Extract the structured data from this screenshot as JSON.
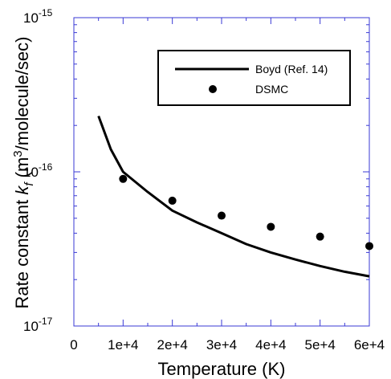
{
  "chart_data": {
    "type": "scatter",
    "xlabel": "Temperature (K)",
    "ylabel": {
      "prefix": "Rate constant ",
      "k": "k",
      "sub": "f",
      "unit_open": " (m",
      "sup": "3",
      "unit_close": "/molecule/sec)"
    },
    "x_ticks": [
      "0",
      "1e+4",
      "2e+4",
      "3e+4",
      "4e+4",
      "5e+4",
      "6e+4"
    ],
    "y_ticks": [
      {
        "base": "10",
        "exp": "-15",
        "value": 1e-15
      },
      {
        "base": "10",
        "exp": "-16",
        "value": 1e-16
      },
      {
        "base": "10",
        "exp": "-17",
        "value": 1e-17
      }
    ],
    "xlim": [
      0,
      60000
    ],
    "ylim": [
      1e-17,
      1e-15
    ],
    "y_scale": "log",
    "grid": false,
    "legend_position": "top-right",
    "series": [
      {
        "name": "Boyd (Ref. 14)",
        "kind": "line",
        "color": "#000000",
        "x": [
          5000,
          7500,
          10000,
          15000,
          20000,
          25000,
          30000,
          35000,
          40000,
          45000,
          50000,
          55000,
          60000
        ],
        "y": [
          2.3e-16,
          1.4e-16,
          1e-16,
          7.4e-17,
          5.6e-17,
          4.7e-17,
          4e-17,
          3.4e-17,
          3e-17,
          2.7e-17,
          2.45e-17,
          2.25e-17,
          2.1e-17
        ]
      },
      {
        "name": "DSMC",
        "kind": "scatter",
        "color": "#000000",
        "x": [
          10000,
          20000,
          30000,
          40000,
          50000,
          60000
        ],
        "y": [
          9e-17,
          6.5e-17,
          5.2e-17,
          4.4e-17,
          3.8e-17,
          3.3e-17
        ]
      }
    ]
  },
  "colors": {
    "frame": "#3a3ad6",
    "data": "#000000"
  }
}
